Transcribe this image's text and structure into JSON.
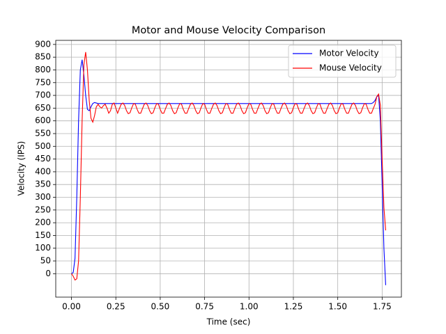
{
  "chart_data": {
    "type": "line",
    "title": "Motor and Mouse Velocity Comparison",
    "xlabel": "Time (sec)",
    "ylabel": "Velocity (IPS)",
    "x": [
      0,
      0.01,
      0.02,
      0.03,
      0.04,
      0.05,
      0.06,
      0.07,
      0.08,
      0.09,
      0.1,
      0.11,
      0.12,
      0.13,
      0.14,
      0.15,
      0.16,
      0.17,
      0.18,
      0.19,
      0.2,
      0.21,
      0.22,
      0.23,
      0.24,
      0.25,
      0.26,
      0.27,
      0.28,
      0.29,
      0.3,
      0.31,
      0.32,
      0.33,
      0.34,
      0.35,
      0.36,
      0.37,
      0.38,
      0.39,
      0.4,
      0.41,
      0.42,
      0.43,
      0.44,
      0.45,
      0.46,
      0.47,
      0.48,
      0.49,
      0.5,
      0.51,
      0.52,
      0.53,
      0.54,
      0.55,
      0.56,
      0.57,
      0.58,
      0.59,
      0.6,
      0.61,
      0.62,
      0.63,
      0.64,
      0.65,
      0.66,
      0.67,
      0.68,
      0.69,
      0.7,
      0.71,
      0.72,
      0.73,
      0.74,
      0.75,
      0.76,
      0.77,
      0.78,
      0.79,
      0.8,
      0.81,
      0.82,
      0.83,
      0.84,
      0.85,
      0.86,
      0.87,
      0.88,
      0.89,
      0.9,
      0.91,
      0.92,
      0.93,
      0.94,
      0.95,
      0.96,
      0.97,
      0.98,
      0.99,
      1,
      1.01,
      1.02,
      1.03,
      1.04,
      1.05,
      1.06,
      1.07,
      1.08,
      1.09,
      1.1,
      1.11,
      1.12,
      1.13,
      1.14,
      1.15,
      1.16,
      1.17,
      1.18,
      1.19,
      1.2,
      1.21,
      1.22,
      1.23,
      1.24,
      1.25,
      1.26,
      1.27,
      1.28,
      1.29,
      1.3,
      1.31,
      1.32,
      1.33,
      1.34,
      1.35,
      1.36,
      1.37,
      1.38,
      1.39,
      1.4,
      1.41,
      1.42,
      1.43,
      1.44,
      1.45,
      1.46,
      1.47,
      1.48,
      1.49,
      1.5,
      1.51,
      1.52,
      1.53,
      1.54,
      1.55,
      1.56,
      1.57,
      1.58,
      1.59,
      1.6,
      1.61,
      1.62,
      1.63,
      1.64,
      1.65,
      1.66,
      1.67,
      1.68,
      1.69,
      1.7,
      1.71,
      1.72,
      1.73,
      1.74,
      1.75,
      1.76,
      1.77
    ],
    "series": [
      {
        "name": "Motor Velocity",
        "color": "#0000ff",
        "values": [
          0,
          5,
          60,
          300,
          600,
          800,
          840,
          780,
          700,
          645,
          640,
          655,
          668,
          672,
          670,
          668,
          668,
          668,
          668,
          668,
          668,
          668,
          668,
          668,
          668,
          668,
          668,
          668,
          668,
          668,
          668,
          668,
          668,
          668,
          668,
          668,
          668,
          668,
          668,
          668,
          668,
          668,
          668,
          668,
          668,
          668,
          668,
          668,
          668,
          668,
          668,
          668,
          668,
          668,
          668,
          668,
          668,
          668,
          668,
          668,
          668,
          668,
          668,
          668,
          668,
          668,
          668,
          668,
          668,
          668,
          668,
          668,
          668,
          668,
          668,
          668,
          668,
          668,
          668,
          668,
          668,
          668,
          668,
          668,
          668,
          668,
          668,
          668,
          668,
          668,
          668,
          668,
          668,
          668,
          668,
          668,
          668,
          668,
          668,
          668,
          668,
          668,
          668,
          668,
          668,
          668,
          668,
          668,
          668,
          668,
          668,
          668,
          668,
          668,
          668,
          668,
          668,
          668,
          668,
          668,
          668,
          668,
          668,
          668,
          668,
          668,
          668,
          668,
          668,
          668,
          668,
          668,
          668,
          668,
          668,
          668,
          668,
          668,
          668,
          668,
          668,
          668,
          668,
          668,
          668,
          668,
          668,
          668,
          668,
          668,
          668,
          668,
          668,
          668,
          668,
          668,
          668,
          668,
          668,
          668,
          668,
          668,
          668,
          668,
          668,
          668,
          668,
          668,
          668,
          668,
          672,
          680,
          695,
          700,
          600,
          350,
          100,
          -45
        ]
      },
      {
        "name": "Mouse Velocity",
        "color": "#ff0000",
        "values": [
          0,
          -10,
          -25,
          -20,
          50,
          300,
          600,
          820,
          870,
          800,
          680,
          610,
          595,
          620,
          655,
          665,
          655,
          650,
          660,
          665,
          650,
          630,
          640,
          665,
          670,
          650,
          630,
          648,
          665,
          670,
          660,
          640,
          628,
          632,
          652,
          668,
          665,
          645,
          630,
          630,
          648,
          665,
          670,
          660,
          640,
          628,
          632,
          652,
          668,
          665,
          645,
          630,
          630,
          648,
          665,
          670,
          660,
          640,
          628,
          632,
          652,
          668,
          665,
          645,
          630,
          630,
          648,
          665,
          670,
          660,
          640,
          628,
          632,
          652,
          668,
          665,
          645,
          630,
          630,
          648,
          665,
          670,
          660,
          640,
          628,
          632,
          652,
          668,
          665,
          645,
          630,
          630,
          648,
          665,
          670,
          660,
          640,
          628,
          632,
          652,
          668,
          665,
          645,
          630,
          630,
          648,
          665,
          670,
          660,
          640,
          628,
          632,
          652,
          668,
          665,
          645,
          630,
          630,
          648,
          665,
          670,
          660,
          640,
          628,
          632,
          652,
          668,
          665,
          645,
          630,
          630,
          648,
          665,
          670,
          660,
          640,
          628,
          632,
          652,
          668,
          665,
          645,
          630,
          630,
          648,
          665,
          670,
          660,
          640,
          628,
          632,
          652,
          668,
          665,
          645,
          630,
          630,
          648,
          665,
          670,
          660,
          640,
          628,
          632,
          652,
          668,
          665,
          645,
          630,
          630,
          648,
          665,
          695,
          705,
          660,
          450,
          260,
          170
        ]
      }
    ],
    "xlim": [
      -0.0885,
      1.8585
    ],
    "xticks": [
      {
        "value": 0,
        "label": "0.00"
      },
      {
        "value": 0.25,
        "label": "0.25"
      },
      {
        "value": 0.5,
        "label": "0.50"
      },
      {
        "value": 0.75,
        "label": "0.75"
      },
      {
        "value": 1,
        "label": "1.00"
      },
      {
        "value": 1.25,
        "label": "1.25"
      },
      {
        "value": 1.5,
        "label": "1.50"
      },
      {
        "value": 1.75,
        "label": "1.75"
      }
    ],
    "ylim": [
      -92,
      916
    ],
    "yticks": [
      0,
      50,
      100,
      150,
      200,
      250,
      300,
      350,
      400,
      450,
      500,
      550,
      600,
      650,
      700,
      750,
      800,
      850,
      900
    ],
    "grid": true,
    "legend": "upper right"
  }
}
